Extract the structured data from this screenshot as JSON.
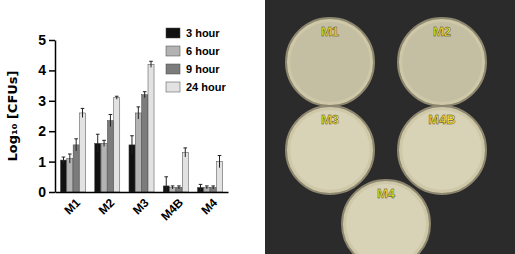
{
  "chart_data": {
    "type": "bar",
    "y_label": "Log₁₀ [CFUs]",
    "categories": [
      "M1",
      "M2",
      "M3",
      "M4B",
      "M4"
    ],
    "series": [
      {
        "name": "3 hour",
        "color": "#111111",
        "values": [
          1.05,
          1.6,
          1.55,
          0.2,
          0.15
        ],
        "errors": [
          0.1,
          0.3,
          0.3,
          0.3,
          0.1
        ]
      },
      {
        "name": "6 hour",
        "color": "#b3b3b3",
        "values": [
          1.1,
          1.6,
          2.6,
          0.15,
          0.15
        ],
        "errors": [
          0.15,
          0.1,
          0.2,
          0.05,
          0.05
        ]
      },
      {
        "name": "9 hour",
        "color": "#7c7c7c",
        "values": [
          1.55,
          2.35,
          3.2,
          0.15,
          0.15
        ],
        "errors": [
          0.2,
          0.2,
          0.1,
          0.05,
          0.05
        ]
      },
      {
        "name": "24 hour",
        "color": "#e2e2e2",
        "values": [
          2.6,
          3.1,
          4.2,
          1.3,
          1.0
        ],
        "errors": [
          0.15,
          0.05,
          0.1,
          0.15,
          0.2
        ]
      }
    ],
    "ylim": [
      0,
      5
    ],
    "yticks": [
      0,
      1,
      2,
      3,
      4,
      5
    ],
    "legend": "upper right"
  },
  "photo_panel": {
    "plates": [
      "M1",
      "M2",
      "M3",
      "M4B",
      "M4"
    ]
  }
}
